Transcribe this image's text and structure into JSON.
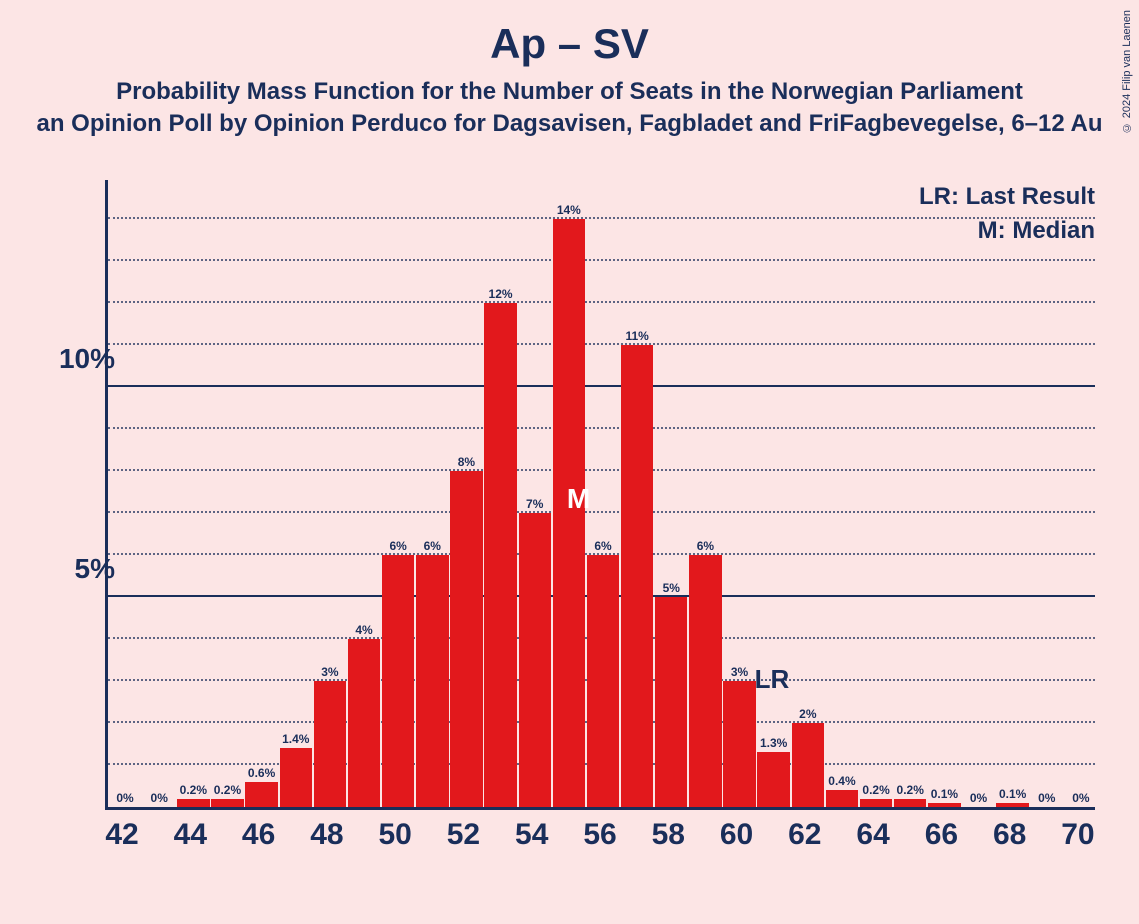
{
  "titles": {
    "main": "Ap – SV",
    "sub": "Probability Mass Function for the Number of Seats in the Norwegian Parliament",
    "source": "an Opinion Poll by Opinion Perduco for Dagsavisen, Fagbladet and FriFagbevegelse, 6–12 Au"
  },
  "legend": {
    "lr": "LR: Last Result",
    "m": "M: Median"
  },
  "copyright": "© 2024 Filip van Laenen",
  "chart": {
    "type": "bar",
    "background_color": "#fce5e5",
    "bar_color": "#e2181c",
    "axis_color": "#1a2e5a",
    "text_color": "#1a2e5a",
    "median_label_color": "#ffffff",
    "ylim_max": 15,
    "y_major_ticks": [
      5,
      10
    ],
    "y_major_labels": [
      "5%",
      "10%"
    ],
    "y_minor_step": 1,
    "xlim": [
      42,
      70
    ],
    "x_tick_labels": [
      42,
      44,
      46,
      48,
      50,
      52,
      54,
      56,
      58,
      60,
      62,
      64,
      66,
      68,
      70
    ],
    "bar_width_ratio": 0.95,
    "bars": [
      {
        "x": 42,
        "v": 0,
        "label": "0%"
      },
      {
        "x": 43,
        "v": 0,
        "label": "0%"
      },
      {
        "x": 44,
        "v": 0.2,
        "label": "0.2%"
      },
      {
        "x": 45,
        "v": 0.2,
        "label": "0.2%"
      },
      {
        "x": 46,
        "v": 0.6,
        "label": "0.6%"
      },
      {
        "x": 47,
        "v": 1.4,
        "label": "1.4%"
      },
      {
        "x": 48,
        "v": 3,
        "label": "3%"
      },
      {
        "x": 49,
        "v": 4,
        "label": "4%"
      },
      {
        "x": 50,
        "v": 6,
        "label": "6%"
      },
      {
        "x": 51,
        "v": 6,
        "label": "6%"
      },
      {
        "x": 52,
        "v": 8,
        "label": "8%"
      },
      {
        "x": 53,
        "v": 12,
        "label": "12%"
      },
      {
        "x": 54,
        "v": 7,
        "label": "7%"
      },
      {
        "x": 55,
        "v": 14,
        "label": "14%"
      },
      {
        "x": 56,
        "v": 6,
        "label": "6%"
      },
      {
        "x": 57,
        "v": 11,
        "label": "11%"
      },
      {
        "x": 58,
        "v": 5,
        "label": "5%"
      },
      {
        "x": 59,
        "v": 6,
        "label": "6%"
      },
      {
        "x": 60,
        "v": 3,
        "label": "3%"
      },
      {
        "x": 61,
        "v": 1.3,
        "label": "1.3%"
      },
      {
        "x": 62,
        "v": 2,
        "label": "2%"
      },
      {
        "x": 63,
        "v": 0.4,
        "label": "0.4%"
      },
      {
        "x": 64,
        "v": 0.2,
        "label": "0.2%"
      },
      {
        "x": 65,
        "v": 0.2,
        "label": "0.2%"
      },
      {
        "x": 66,
        "v": 0.1,
        "label": "0.1%"
      },
      {
        "x": 67,
        "v": 0,
        "label": "0%"
      },
      {
        "x": 68,
        "v": 0.1,
        "label": "0.1%"
      },
      {
        "x": 69,
        "v": 0,
        "label": "0%"
      },
      {
        "x": 70,
        "v": 0,
        "label": "0%"
      }
    ],
    "median": {
      "x": 55,
      "label": "M"
    },
    "last_result": {
      "x": 61,
      "label": "LR"
    }
  }
}
